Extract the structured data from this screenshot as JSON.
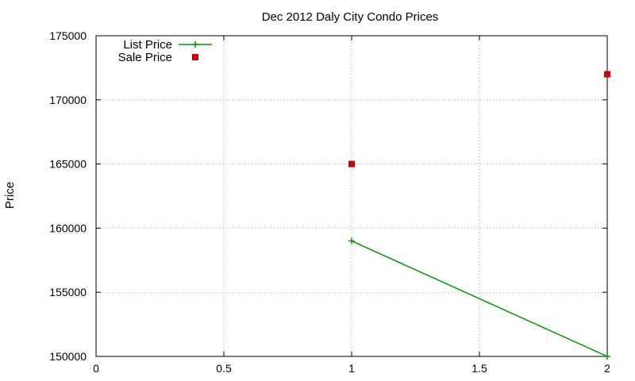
{
  "chart_data": {
    "type": "line",
    "title": "Dec 2012 Daly City Condo Prices",
    "xlabel": "",
    "ylabel": "Price",
    "xlim": [
      0,
      2
    ],
    "ylim": [
      150000,
      175000
    ],
    "x_ticks": [
      0,
      0.5,
      1,
      1.5,
      2
    ],
    "x_tick_labels": [
      "0",
      "0.5",
      "1",
      "1.5",
      "2"
    ],
    "y_ticks": [
      150000,
      155000,
      160000,
      165000,
      170000,
      175000
    ],
    "y_tick_labels": [
      "150000",
      "155000",
      "160000",
      "165000",
      "170000",
      "175000"
    ],
    "grid": true,
    "legend_position": "top-left",
    "series": [
      {
        "name": "List Price",
        "style": "linespoints",
        "marker": "plus",
        "color": "#009900",
        "points": [
          {
            "x": 1,
            "y": 159000
          },
          {
            "x": 2,
            "y": 150000
          }
        ]
      },
      {
        "name": "Sale Price",
        "style": "points",
        "marker": "square",
        "color": "#cc0000",
        "points": [
          {
            "x": 1,
            "y": 165000
          },
          {
            "x": 2,
            "y": 172000
          }
        ]
      }
    ]
  }
}
